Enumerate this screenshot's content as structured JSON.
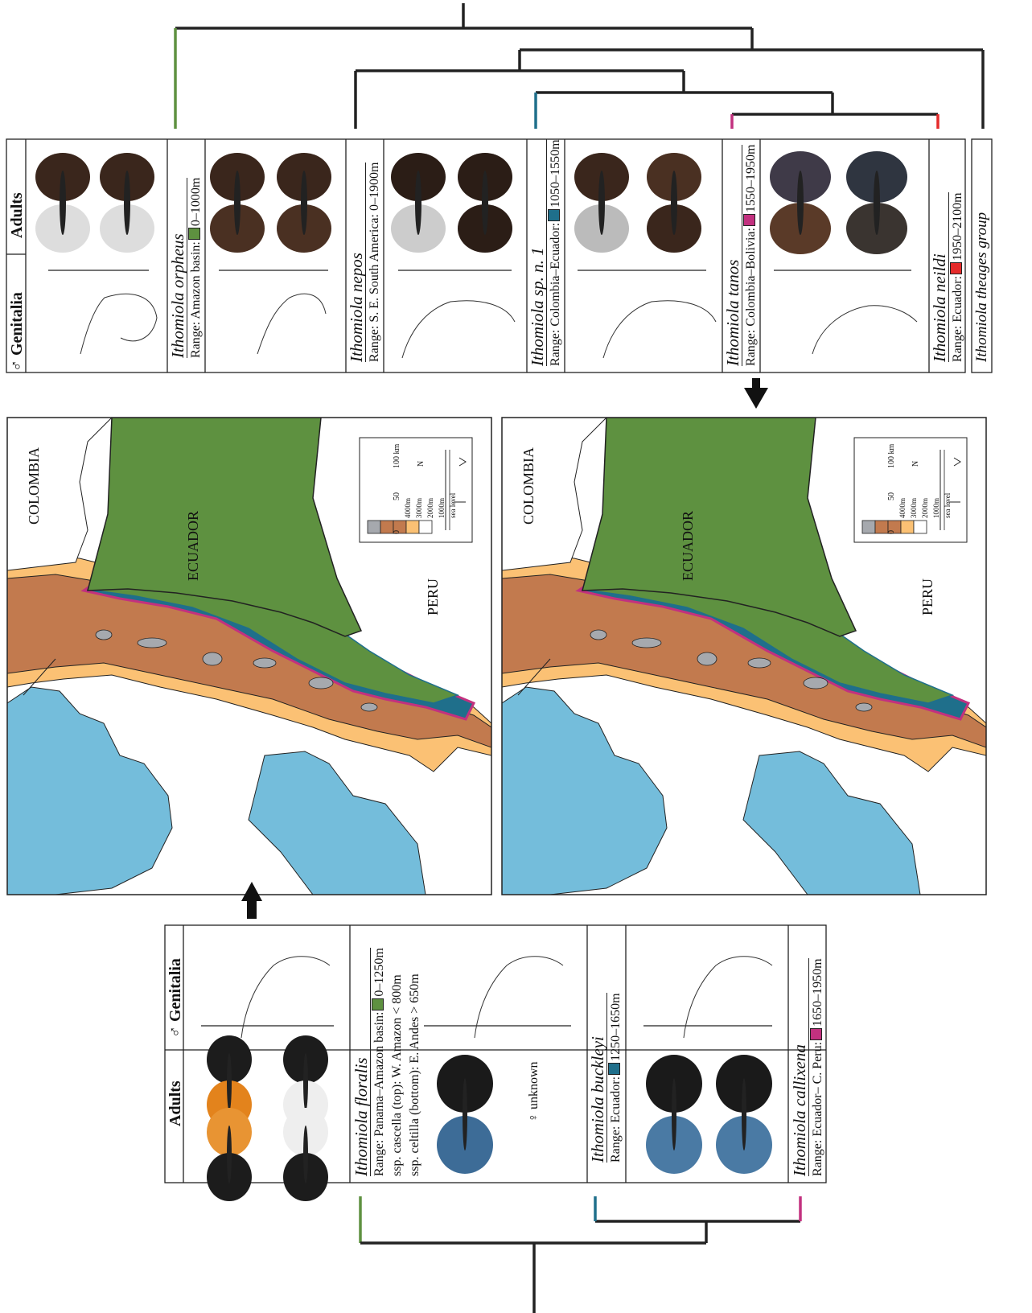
{
  "colors": {
    "green": "#5e9140",
    "teal": "#1f6f8b",
    "magenta": "#c2317f",
    "red": "#e52b2b",
    "ocean": "#74bddb",
    "brown": "#c27a4e",
    "tan": "#fbc174",
    "gray": "#a6a9ae"
  },
  "top_panel": {
    "headers": {
      "genitalia": "♂ Genitalia",
      "adults": "Adults"
    },
    "species": [
      {
        "name": "Ithomiola orpheus",
        "range": "Range: Amazon basin:",
        "elev": "0–1000m",
        "color": "green"
      },
      {
        "name": "Ithomiola nepos",
        "range": "Range: S. E. South America: 0–1900m",
        "elev": "",
        "color": ""
      },
      {
        "name": "Ithomiola sp. n. 1",
        "range": "Range: Colombia–Ecuador:",
        "elev": "1050–1550m",
        "color": "teal"
      },
      {
        "name": "Ithomiola tanos",
        "range": "Range: Colombia–Bolivia:",
        "elev": "1550–1950m",
        "color": "magenta"
      },
      {
        "name": "Ithomiola neildi",
        "range": "Range: Ecuador:",
        "elev": "1950–2100m",
        "color": "red"
      }
    ],
    "group_label": "Ithomiola theages group"
  },
  "bottom_panel": {
    "headers": {
      "genitalia": "♂ Genitalia",
      "adults": "Adults"
    },
    "floralis": {
      "name": "Ithomiola floralis",
      "range": "Range: Panama–Amazon basin:",
      "elev": "0–1250m",
      "ssp1": "ssp. cascella (top): W. Amazon < 800m",
      "ssp2": "ssp. celtilla (bottom): E. Andes > 650m"
    },
    "buckleyi": {
      "name": "Ithomiola buckleyi",
      "range": "Range: Ecuador:",
      "elev": "1250–1650m",
      "female": "♀ unknown"
    },
    "callixena": {
      "name": "Ithomiola callixena",
      "range": "Range: Ecuador– C. Peru:",
      "elev": "1650–1950m"
    }
  },
  "maps": {
    "labels": {
      "colombia": "COLOMBIA",
      "ecuador": "ECUADOR",
      "peru": "PERU"
    },
    "legend": {
      "elevations": [
        "4000m",
        "3000m",
        "2000m",
        "1000m",
        "sea level"
      ],
      "scale": [
        "0",
        "50",
        "100 km"
      ],
      "north": "N"
    }
  }
}
